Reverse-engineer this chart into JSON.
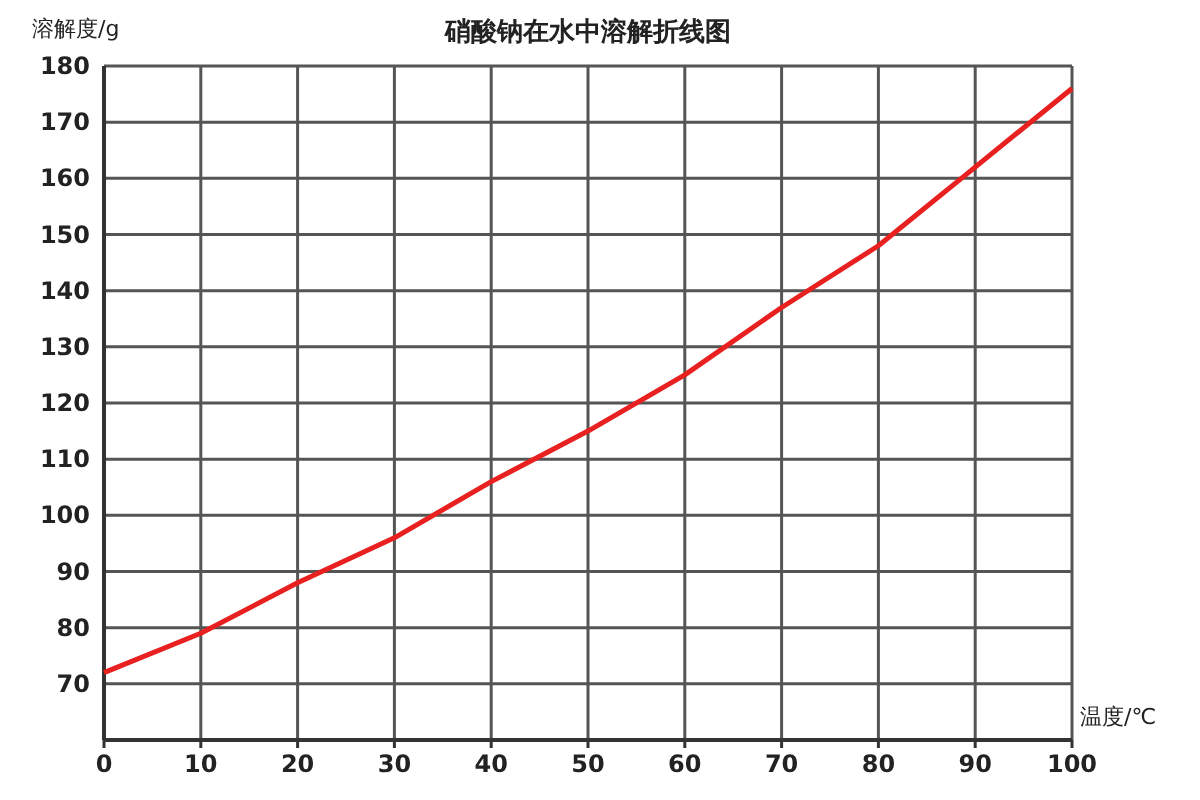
{
  "chart_data": {
    "type": "line",
    "title": "硝酸钠在水中溶解折线图",
    "xlabel": "温度/℃",
    "ylabel": "溶解度/g",
    "x": [
      0,
      10,
      20,
      30,
      40,
      50,
      60,
      70,
      80,
      90,
      100
    ],
    "series": [
      {
        "color": "#e8201f",
        "values": [
          72,
          79,
          88,
          96,
          106,
          115,
          125,
          137,
          148,
          162,
          176
        ]
      }
    ],
    "xlim": [
      0,
      100
    ],
    "xticks": [
      0,
      10,
      20,
      30,
      40,
      50,
      60,
      70,
      80,
      90,
      100
    ],
    "ylim": [
      60,
      180
    ],
    "yticks": [
      70,
      80,
      90,
      100,
      110,
      120,
      130,
      140,
      150,
      160,
      170,
      180
    ],
    "grid": true,
    "marker": "none",
    "line_style": "solid"
  }
}
